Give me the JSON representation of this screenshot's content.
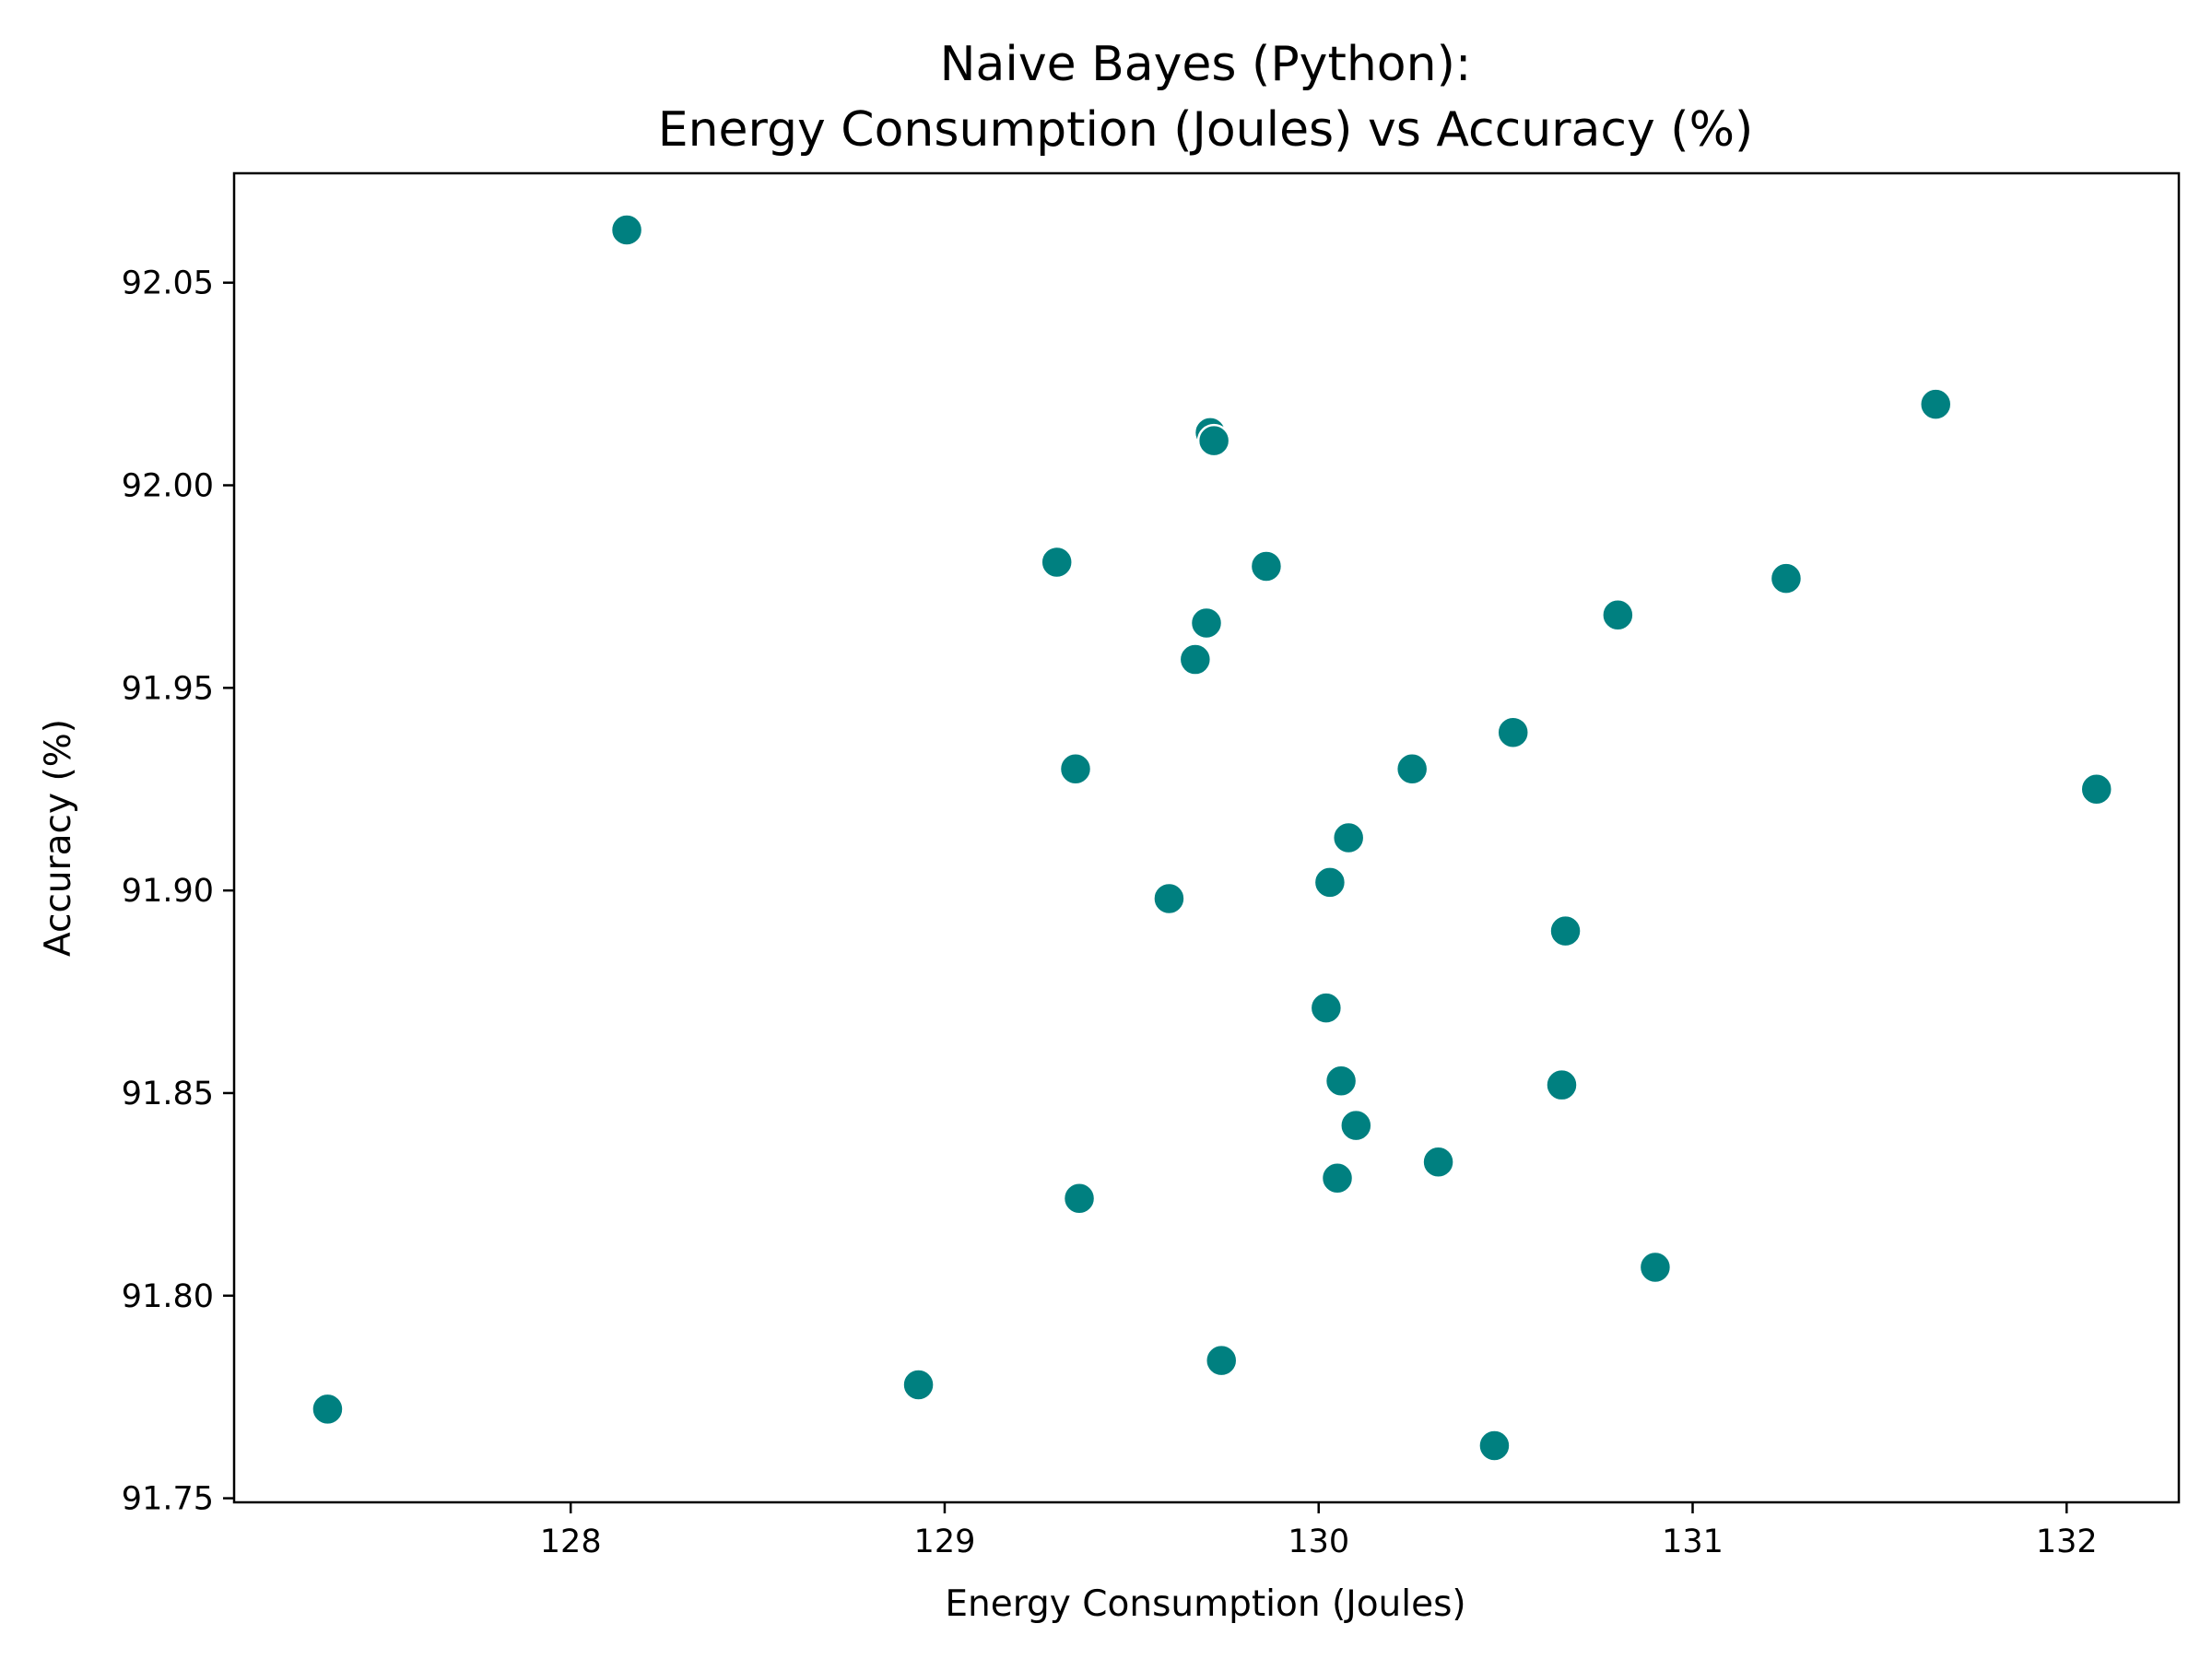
{
  "chart_data": {
    "type": "scatter",
    "title_lines": [
      "Naive Bayes (Python):",
      "Energy Consumption (Joules) vs Accuracy (%)"
    ],
    "xlabel": "Energy Consumption (Joules)",
    "ylabel": "Accuracy (%)",
    "xlim": [
      127.1,
      132.3
    ],
    "ylim": [
      91.749,
      92.077
    ],
    "xticks": [
      128,
      129,
      130,
      131,
      132
    ],
    "xtick_labels": [
      "128",
      "129",
      "130",
      "131",
      "132"
    ],
    "yticks": [
      91.75,
      91.8,
      91.85,
      91.9,
      91.95,
      92.0,
      92.05
    ],
    "ytick_labels": [
      "91.75",
      "91.80",
      "91.85",
      "91.90",
      "91.95",
      "92.00",
      "92.05"
    ],
    "marker_color": "#008080",
    "grid": false,
    "legend": "none",
    "points": [
      {
        "x": 127.35,
        "y": 91.772
      },
      {
        "x": 128.15,
        "y": 92.063
      },
      {
        "x": 128.93,
        "y": 91.778
      },
      {
        "x": 129.3,
        "y": 91.981
      },
      {
        "x": 129.35,
        "y": 91.93
      },
      {
        "x": 129.36,
        "y": 91.824
      },
      {
        "x": 129.6,
        "y": 91.898
      },
      {
        "x": 129.67,
        "y": 91.957
      },
      {
        "x": 129.7,
        "y": 91.966
      },
      {
        "x": 129.71,
        "y": 92.013
      },
      {
        "x": 129.72,
        "y": 92.011
      },
      {
        "x": 129.74,
        "y": 91.784
      },
      {
        "x": 129.86,
        "y": 91.98
      },
      {
        "x": 130.02,
        "y": 91.871
      },
      {
        "x": 130.03,
        "y": 91.902
      },
      {
        "x": 130.05,
        "y": 91.829
      },
      {
        "x": 130.06,
        "y": 91.853
      },
      {
        "x": 130.08,
        "y": 91.913
      },
      {
        "x": 130.1,
        "y": 91.842
      },
      {
        "x": 130.25,
        "y": 91.93
      },
      {
        "x": 130.32,
        "y": 91.833
      },
      {
        "x": 130.47,
        "y": 91.763
      },
      {
        "x": 130.52,
        "y": 91.939
      },
      {
        "x": 130.65,
        "y": 91.852
      },
      {
        "x": 130.66,
        "y": 91.89
      },
      {
        "x": 130.8,
        "y": 91.968
      },
      {
        "x": 130.9,
        "y": 91.807
      },
      {
        "x": 131.25,
        "y": 91.977
      },
      {
        "x": 131.65,
        "y": 92.02
      },
      {
        "x": 132.08,
        "y": 91.925
      }
    ]
  }
}
